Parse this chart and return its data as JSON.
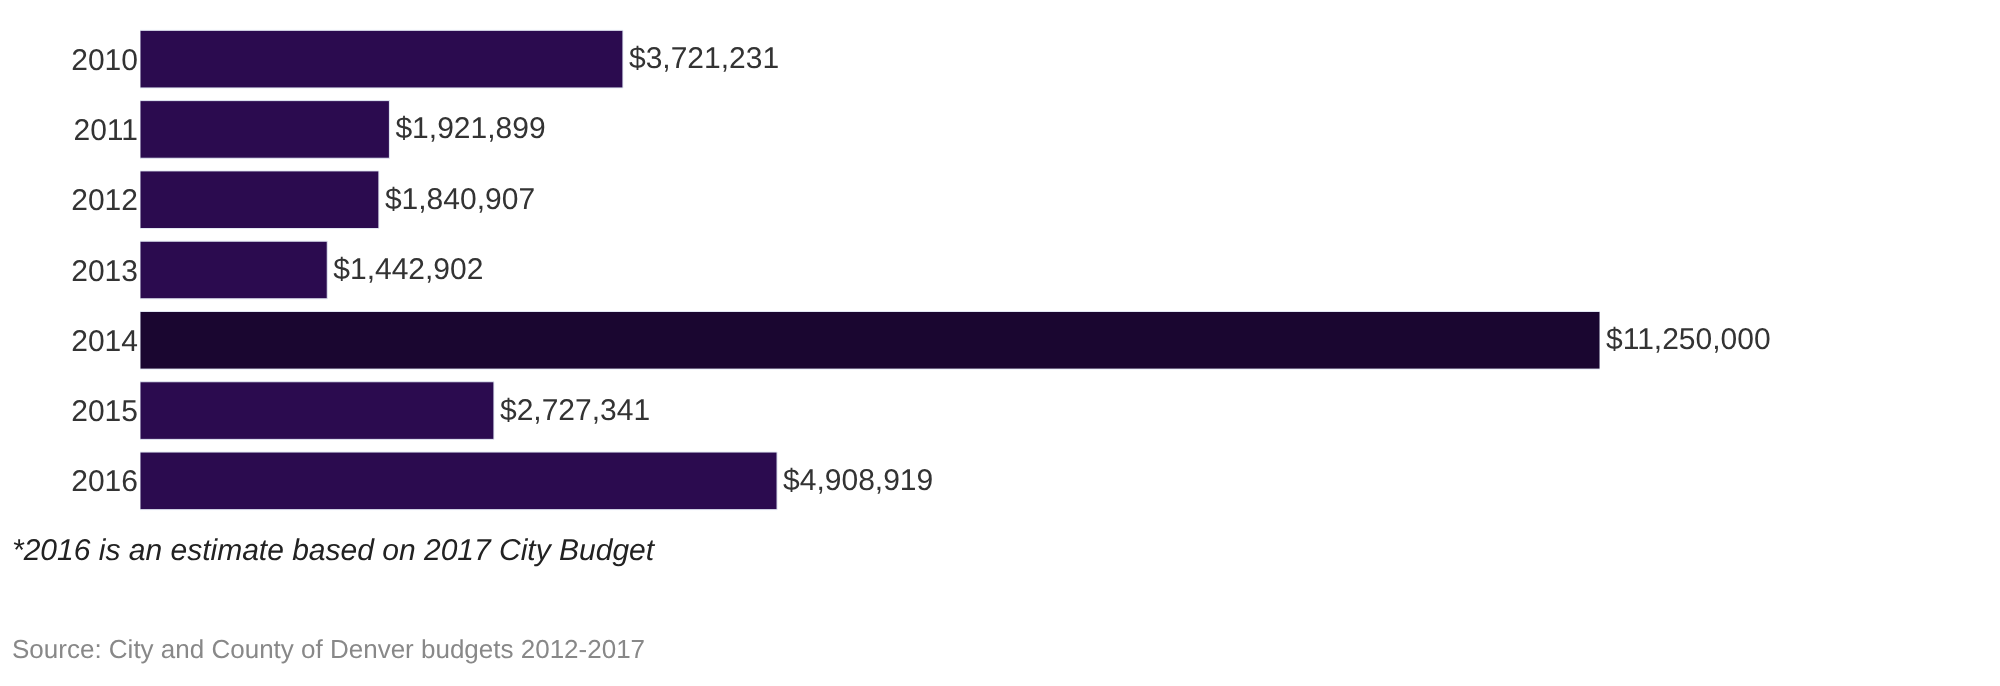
{
  "chart_data": {
    "type": "bar",
    "orientation": "horizontal",
    "categories": [
      "2010",
      "2011",
      "2012",
      "2013",
      "2014",
      "2015",
      "2016"
    ],
    "values": [
      3721231,
      1921899,
      1840907,
      1442902,
      11250000,
      2727341,
      4908919
    ],
    "colors": [
      "#2b0b4f",
      "#2b0b4f",
      "#2b0b4f",
      "#2b0b4f",
      "#1a0630",
      "#2b0b4f",
      "#2b0b4f"
    ],
    "value_labels": [
      "$3,721,231",
      "$1,921,899",
      "$1,840,907",
      "$1,442,902",
      "$11,250,000",
      "$2,727,341",
      "$4,908,919"
    ],
    "legend": false,
    "annotations": [
      "*2016 is an estimate based on 2017 City Budget",
      "Source: City and County of Denver budgets 2012-2017"
    ]
  }
}
